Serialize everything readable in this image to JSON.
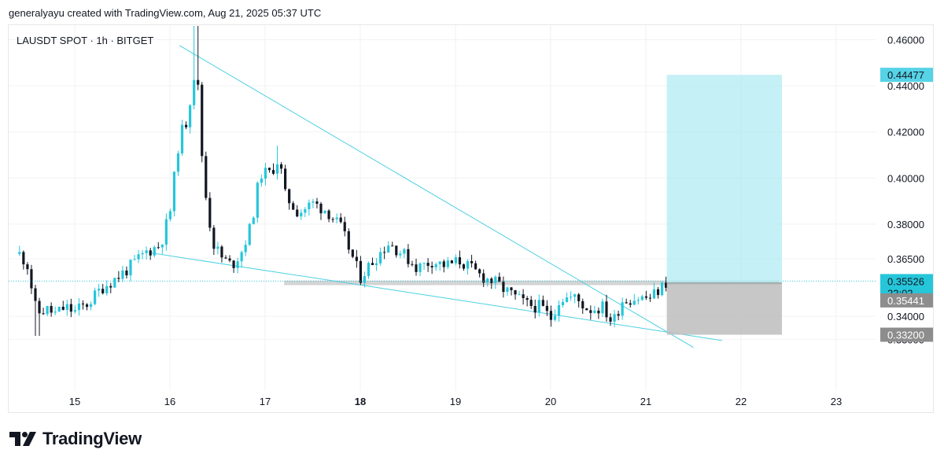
{
  "header": {
    "attribution": "generalyayu created with TradingView.com, Aug 21, 2025 05:37 UTC"
  },
  "chart_data": {
    "type": "candlestick",
    "title": "LAUSDT SPOT · 1h · BITGET",
    "y_axis": {
      "ticks": [
        "0.46000",
        "0.44000",
        "0.42000",
        "0.40000",
        "0.38000",
        "0.36500",
        "0.34000",
        "0.33000"
      ],
      "range": [
        0.325,
        0.47
      ]
    },
    "x_axis": {
      "ticks": [
        "15",
        "16",
        "17",
        "18",
        "19",
        "20",
        "21",
        "22",
        "23"
      ],
      "bold_tick": "18"
    },
    "price_labels": [
      {
        "text": "0.44477",
        "value": 0.44477,
        "color": "#56d3e6",
        "role": "take-profit"
      },
      {
        "text": "0.35526",
        "value": 0.35526,
        "color": "#26c6da",
        "role": "current-price"
      },
      {
        "text": "22:02",
        "role": "countdown"
      },
      {
        "text": "0.35441",
        "value": 0.35441,
        "color": "#8d8d8d",
        "role": "entry"
      },
      {
        "text": "0.33200",
        "value": 0.332,
        "color": "#8d8d8d",
        "role": "stop-loss"
      }
    ],
    "current_price": 0.35526,
    "candle_colors": {
      "up": "#26c6da",
      "down": "#131722"
    },
    "price_path": [
      [
        14.42,
        0.367
      ],
      [
        14.5,
        0.363
      ],
      [
        14.6,
        0.341
      ],
      [
        14.7,
        0.343
      ],
      [
        14.8,
        0.341
      ],
      [
        14.9,
        0.344
      ],
      [
        15.0,
        0.342
      ],
      [
        15.15,
        0.346
      ],
      [
        15.3,
        0.353
      ],
      [
        15.45,
        0.357
      ],
      [
        15.6,
        0.362
      ],
      [
        15.75,
        0.368
      ],
      [
        15.9,
        0.371
      ],
      [
        16.0,
        0.385
      ],
      [
        16.1,
        0.418
      ],
      [
        16.18,
        0.425
      ],
      [
        16.25,
        0.445
      ],
      [
        16.3,
        0.438
      ],
      [
        16.35,
        0.4
      ],
      [
        16.45,
        0.372
      ],
      [
        16.55,
        0.365
      ],
      [
        16.65,
        0.362
      ],
      [
        16.75,
        0.368
      ],
      [
        16.85,
        0.379
      ],
      [
        16.95,
        0.402
      ],
      [
        17.05,
        0.402
      ],
      [
        17.15,
        0.409
      ],
      [
        17.2,
        0.393
      ],
      [
        17.35,
        0.385
      ],
      [
        17.5,
        0.389
      ],
      [
        17.65,
        0.386
      ],
      [
        17.8,
        0.378
      ],
      [
        18.0,
        0.357
      ],
      [
        18.15,
        0.365
      ],
      [
        18.3,
        0.372
      ],
      [
        18.45,
        0.367
      ],
      [
        18.6,
        0.361
      ],
      [
        18.75,
        0.364
      ],
      [
        18.9,
        0.362
      ],
      [
        19.05,
        0.364
      ],
      [
        19.25,
        0.358
      ],
      [
        19.4,
        0.355
      ],
      [
        19.6,
        0.349
      ],
      [
        19.75,
        0.345
      ],
      [
        19.9,
        0.344
      ],
      [
        20.0,
        0.339
      ],
      [
        20.1,
        0.348
      ],
      [
        20.25,
        0.348
      ],
      [
        20.4,
        0.343
      ],
      [
        20.55,
        0.344
      ],
      [
        20.65,
        0.337
      ],
      [
        20.75,
        0.347
      ],
      [
        20.9,
        0.348
      ],
      [
        21.05,
        0.348
      ],
      [
        21.15,
        0.352
      ],
      [
        21.22,
        0.355
      ]
    ],
    "trendlines": [
      {
        "name": "upper",
        "from": [
          16.1,
          0.4575
        ],
        "to": [
          21.5,
          0.3265
        ]
      },
      {
        "name": "lower",
        "from": [
          15.8,
          0.3675
        ],
        "to": [
          21.8,
          0.3295
        ]
      }
    ],
    "support_zone": {
      "from_x": 17.2,
      "to_x": 22.4,
      "low": 0.3535,
      "high": 0.3555
    },
    "position": {
      "from_x": 21.22,
      "to_x": 22.43,
      "entry": 0.35441,
      "target": 0.44477,
      "stop": 0.332,
      "profit_color": "#b2ebf2",
      "loss_color": "#bdbdbd"
    }
  },
  "footer": {
    "brand": "TradingView"
  }
}
